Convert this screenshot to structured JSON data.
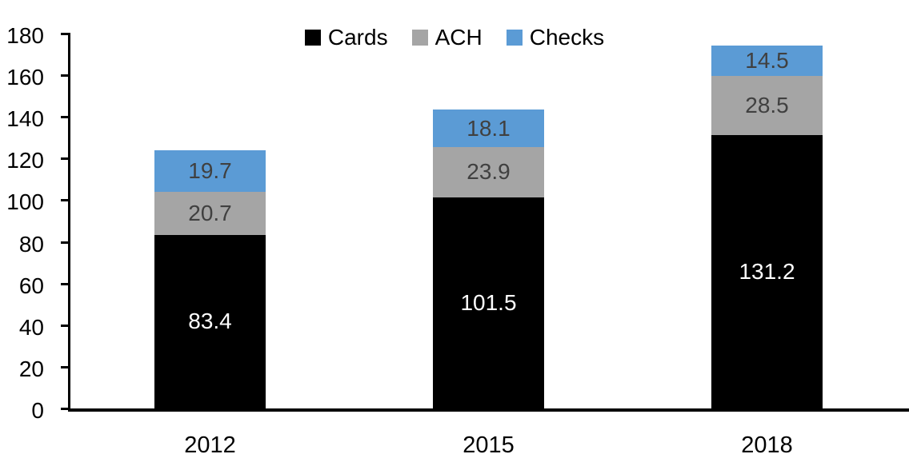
{
  "chart_data": {
    "type": "bar",
    "stacked": true,
    "title": "",
    "categories": [
      "2012",
      "2015",
      "2018"
    ],
    "series": [
      {
        "name": "Cards",
        "color": "#000000",
        "label_color": "#ffffff",
        "values": [
          83.4,
          101.5,
          131.2
        ]
      },
      {
        "name": "ACH",
        "color": "#a5a5a5",
        "label_color": "#404040",
        "values": [
          20.7,
          23.9,
          28.5
        ]
      },
      {
        "name": "Checks",
        "color": "#5b9bd5",
        "label_color": "#404040",
        "values": [
          19.7,
          18.1,
          14.5
        ]
      }
    ],
    "totals": [
      123.8,
      143.5,
      174.2
    ],
    "y_axis": {
      "min": 0,
      "max": 180,
      "tick_interval": 20,
      "tick_labels": [
        "0",
        "20",
        "40",
        "60",
        "80",
        "100",
        "120",
        "140",
        "160",
        "180"
      ]
    },
    "x_axis": {
      "tick_labels": [
        "2012",
        "2015",
        "2018"
      ]
    },
    "legend": {
      "position": "top-center",
      "entries": [
        "Cards",
        "ACH",
        "Checks"
      ]
    },
    "grid": false,
    "axis_color": "#000000",
    "background": "#ffffff",
    "data_labels_shown": true
  }
}
